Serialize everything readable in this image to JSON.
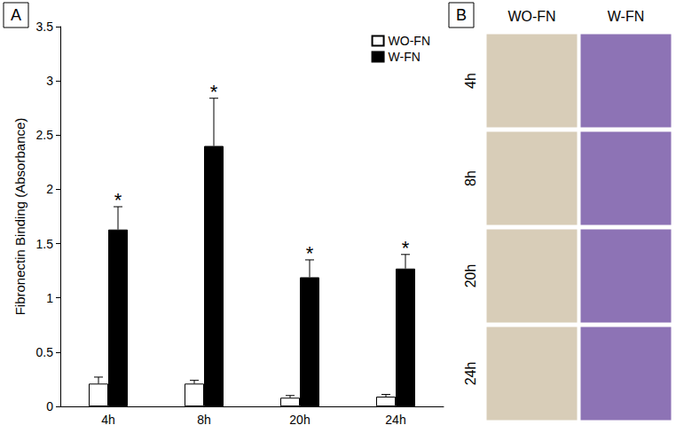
{
  "chart_data": {
    "type": "bar",
    "panel": "A",
    "ylabel": "Fibronectin Binding (Absorbance)",
    "categories": [
      "4h",
      "8h",
      "20h",
      "24h"
    ],
    "series": [
      {
        "name": "WO-FN",
        "color": "#ffffff",
        "values": [
          0.21,
          0.21,
          0.08,
          0.09
        ],
        "errors": [
          0.06,
          0.03,
          0.02,
          0.02
        ]
      },
      {
        "name": "W-FN",
        "color": "#000000",
        "values": [
          1.63,
          2.4,
          1.19,
          1.27
        ],
        "errors": [
          0.21,
          0.44,
          0.16,
          0.13
        ],
        "significance": [
          "*",
          "*",
          "*",
          "*"
        ]
      }
    ],
    "ylim": [
      0,
      3.5
    ],
    "yticks": [
      0,
      0.5,
      1,
      1.5,
      2,
      2.5,
      3,
      3.5
    ],
    "legend": "top-right",
    "grid": false
  },
  "panel_b": {
    "label": "B",
    "columns": [
      "WO-FN",
      "W-FN"
    ],
    "rows": [
      "4h",
      "8h",
      "20h",
      "24h"
    ]
  }
}
